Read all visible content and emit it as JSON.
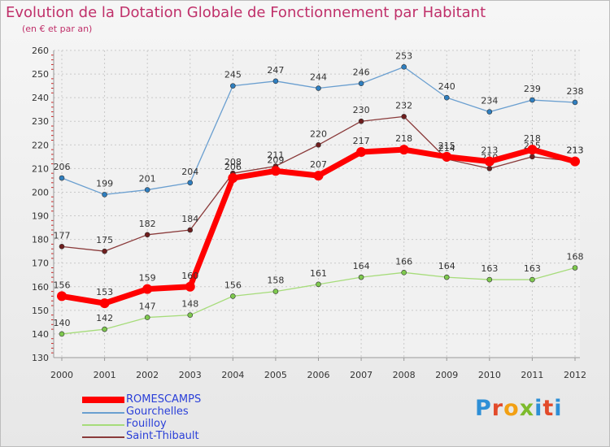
{
  "chart_data": {
    "type": "line",
    "title": "Evolution de la Dotation Globale de Fonctionnement par Habitant",
    "subtitle": "(en € et par an)",
    "xlabel": "",
    "ylabel": "",
    "ylim": [
      130,
      260
    ],
    "y_ticks": [
      130,
      140,
      150,
      160,
      170,
      180,
      190,
      200,
      210,
      220,
      230,
      240,
      250,
      260
    ],
    "categories": [
      "2000",
      "2001",
      "2002",
      "2003",
      "2004",
      "2005",
      "2006",
      "2007",
      "2008",
      "2009",
      "2010",
      "2011",
      "2012"
    ],
    "grid": true,
    "legend_position": "bottom-left",
    "series": [
      {
        "name": "Gourchelles",
        "color": "#6a9fd0",
        "marker": "#2f7fc0",
        "values": [
          206,
          199,
          201,
          204,
          245,
          247,
          244,
          246,
          253,
          240,
          234,
          239,
          238
        ]
      },
      {
        "name": "Fouilloy",
        "color": "#a6dc7a",
        "marker": "#7ec94e",
        "values": [
          140,
          142,
          147,
          148,
          156,
          158,
          161,
          164,
          166,
          164,
          163,
          163,
          168
        ]
      },
      {
        "name": "Saint-Thibault",
        "color": "#8a3a3a",
        "marker": "#6e1e1e",
        "values": [
          177,
          175,
          182,
          184,
          208,
          211,
          220,
          230,
          232,
          214,
          210,
          215,
          213
        ]
      },
      {
        "name": "ROMESCAMPS",
        "color": "#ff0000",
        "marker": "#ff0000",
        "values": [
          156,
          153,
          159,
          160,
          206,
          209,
          207,
          217,
          218,
          215,
          213,
          218,
          213
        ]
      }
    ]
  },
  "legend": [
    {
      "label": "ROMESCAMPS",
      "color": "#ff0000"
    },
    {
      "label": "Gourchelles",
      "color": "#6a9fd0"
    },
    {
      "label": "Fouilloy",
      "color": "#a6dc7a"
    },
    {
      "label": "Saint-Thibault",
      "color": "#8a3a3a"
    }
  ],
  "brand": {
    "letters": [
      "P",
      "r",
      "o",
      "x",
      "i",
      "t",
      "i"
    ],
    "name": "Proxiti"
  }
}
